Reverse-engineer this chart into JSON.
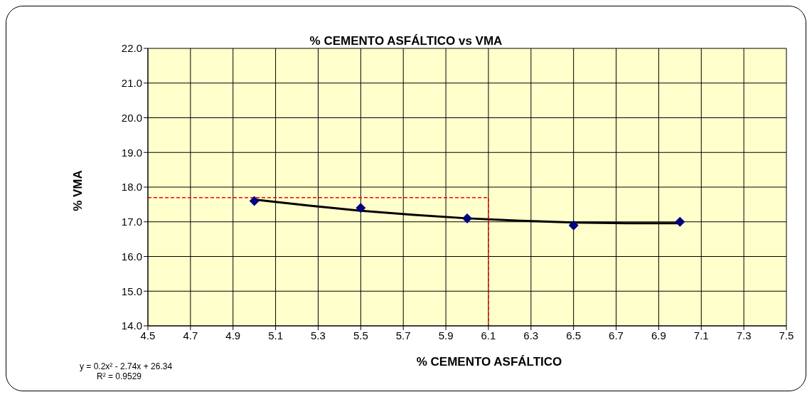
{
  "chart_data": {
    "type": "scatter",
    "title": "% CEMENTO  ASFÁLTICO vs VMA",
    "xlabel": "% CEMENTO  ASFÁLTICO",
    "ylabel": "% VMA",
    "x": [
      5.0,
      5.5,
      6.0,
      6.5,
      7.0
    ],
    "series": [
      {
        "color": "#000080",
        "marker": "diamond",
        "values": [
          17.6,
          17.4,
          17.1,
          16.9,
          17.0
        ]
      },
      {
        "type": "line",
        "color": "#000000",
        "marker": "none",
        "line_style": "solid",
        "x": [
          5.0,
          5.25,
          5.5,
          5.75,
          6.0,
          6.25,
          6.5,
          6.75,
          7.0
        ],
        "values": [
          17.64,
          17.47,
          17.32,
          17.2,
          17.1,
          17.03,
          16.98,
          16.96,
          16.96
        ]
      },
      {
        "type": "line",
        "color": "#ff0000",
        "marker": "none",
        "line_style": "dashed",
        "x": [
          4.5,
          6.1,
          6.1
        ],
        "values": [
          17.7,
          17.7,
          14.0
        ]
      }
    ],
    "xlim": [
      4.5,
      7.5
    ],
    "xticks": [
      4.5,
      4.7,
      4.9,
      5.1,
      5.3,
      5.5,
      5.7,
      5.9,
      6.1,
      6.3,
      6.5,
      6.7,
      6.9,
      7.1,
      7.3,
      7.5
    ],
    "ylim": [
      14,
      22
    ],
    "yticks": [
      {
        "value": 14,
        "label": "14.0"
      },
      {
        "value": 15,
        "label": "15.0"
      },
      {
        "value": 16,
        "label": "16.0"
      },
      {
        "value": 17,
        "label": "17.0"
      },
      {
        "value": 18,
        "label": "18.0"
      },
      {
        "value": 19,
        "label": "19.0"
      },
      {
        "value": 20,
        "label": "20.0"
      },
      {
        "value": 21,
        "label": "21.0"
      },
      {
        "value": 22,
        "label": "22.0"
      }
    ],
    "grid": true,
    "legend": false,
    "annotations": [
      "y = 0.2x² - 2.74x + 26.34",
      "R² = 0.9529"
    ]
  }
}
